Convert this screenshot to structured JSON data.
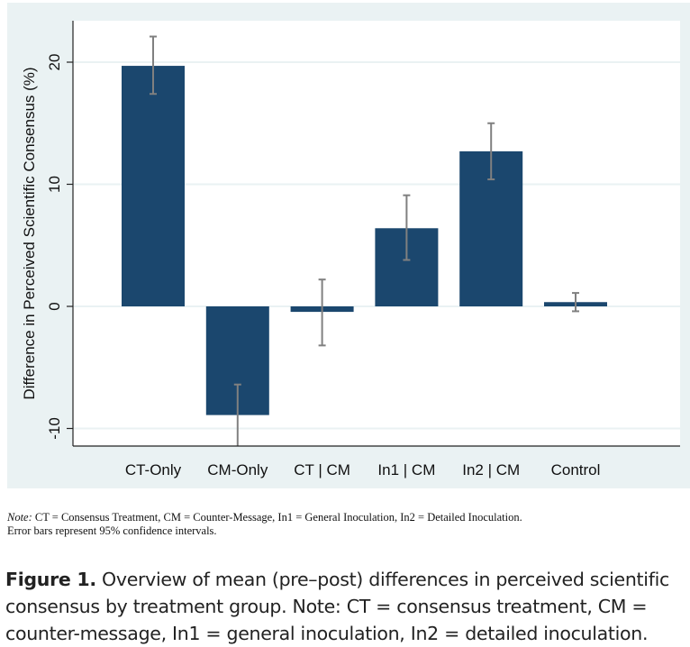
{
  "chart_data": {
    "type": "bar",
    "title": "",
    "xlabel": "",
    "ylabel": "Difference in Perceived Scientific Consensus (%)",
    "ylim": [
      -11.5,
      23.5
    ],
    "yticks": [
      -10,
      0,
      10,
      20
    ],
    "ytick_labels": [
      "-10",
      "0",
      "10",
      "20"
    ],
    "grid": true,
    "legend": "none",
    "categories": [
      "CT-Only",
      "CM-Only",
      "CT | CM",
      "In1 | CM",
      "In2 | CM",
      "Control"
    ],
    "values": [
      19.7,
      -8.9,
      -0.45,
      6.4,
      12.7,
      0.35
    ],
    "error_bars": {
      "type": "95% CI",
      "lower": [
        17.4,
        -11.5,
        -3.2,
        3.8,
        10.4,
        -0.4
      ],
      "upper": [
        22.1,
        -6.4,
        2.2,
        9.1,
        15.0,
        1.1
      ]
    },
    "colors": {
      "bar": "#1b476e",
      "error_bar": "#808080",
      "panel_background": "#eaf2f3",
      "plot_background": "#ffffff",
      "gridline": "#eaf2f3"
    }
  },
  "note": {
    "label": "Note:",
    "line1": " CT = Consensus Treatment, CM = Counter-Message, In1 = General Inoculation, In2 = Detailed Inoculation.",
    "line2": "Error bars represent 95% confidence intervals."
  },
  "caption": {
    "label": "Figure 1.",
    "line1": "  Overview of mean (pre–post) differences in perceived scientific",
    "line2": "consensus by treatment group. Note: CT = consensus treatment, CM =",
    "line3": "counter-message, In1 = general inoculation, In2 = detailed inoculation."
  }
}
